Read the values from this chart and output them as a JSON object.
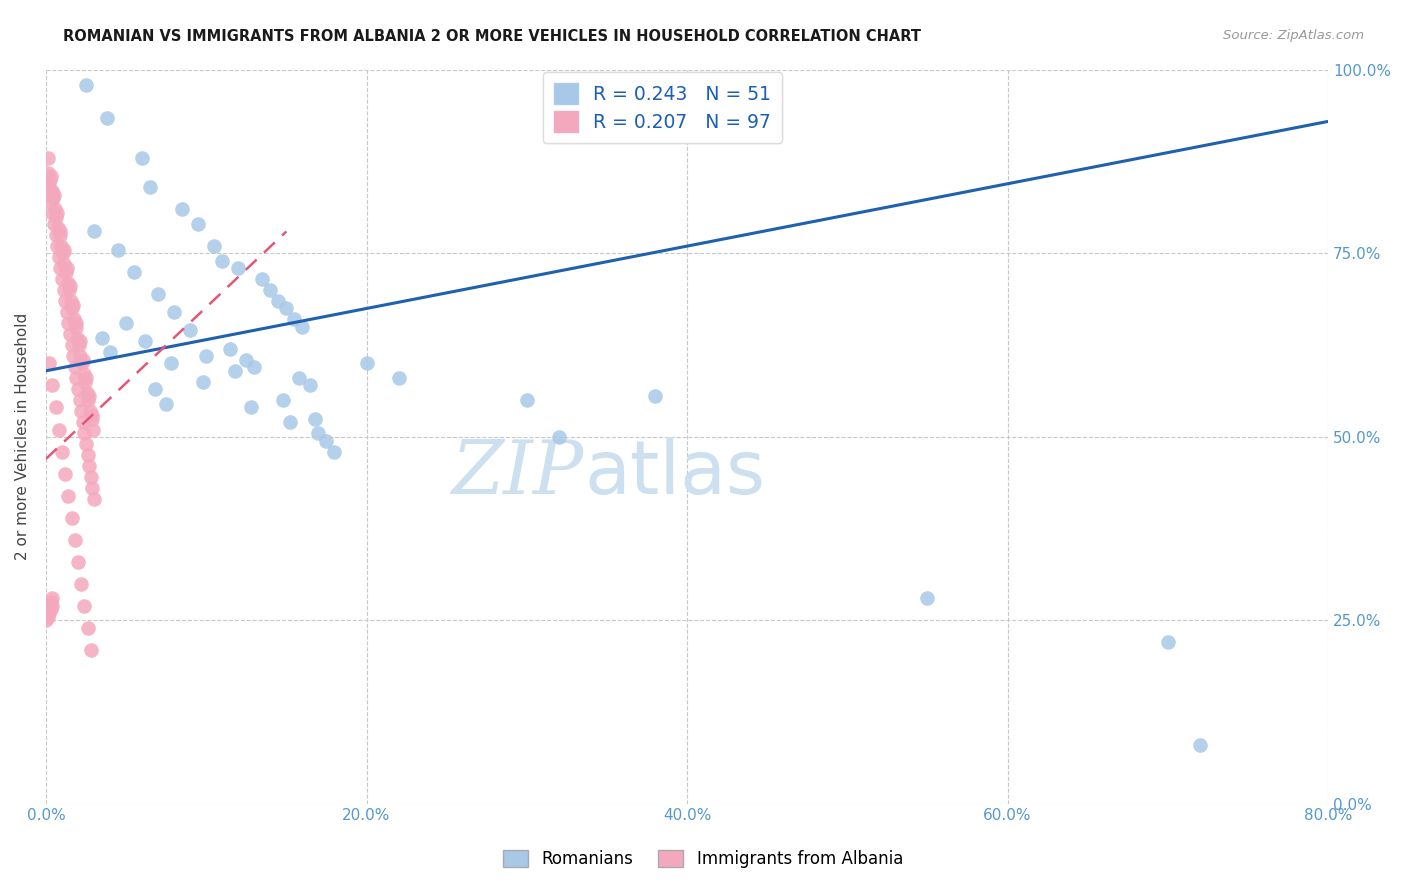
{
  "title": "ROMANIAN VS IMMIGRANTS FROM ALBANIA 2 OR MORE VEHICLES IN HOUSEHOLD CORRELATION CHART",
  "source": "Source: ZipAtlas.com",
  "ylabel": "2 or more Vehicles in Household",
  "xlabel_vals": [
    0.0,
    20.0,
    40.0,
    60.0,
    80.0
  ],
  "ylabel_vals": [
    0.0,
    25.0,
    50.0,
    75.0,
    100.0
  ],
  "xlim": [
    0.0,
    80.0
  ],
  "ylim": [
    0.0,
    100.0
  ],
  "legend_romanian": "Romanians",
  "legend_albania": "Immigrants from Albania",
  "R_romanian": 0.243,
  "N_romanian": 51,
  "R_albania": 0.207,
  "N_albania": 97,
  "romanian_color": "#a8c8e8",
  "albania_color": "#f4a8be",
  "trendline_romanian_color": "#2060b0",
  "trendline_albania_color": "#e05878",
  "watermark_zip_color": "#c8dff0",
  "watermark_atlas_color": "#c8dff0",
  "rom_x": [
    2.5,
    3.8,
    6.0,
    6.5,
    8.5,
    9.5,
    10.5,
    11.0,
    12.0,
    13.5,
    14.0,
    14.5,
    15.0,
    15.5,
    16.0,
    3.0,
    4.5,
    5.5,
    7.0,
    8.0,
    9.0,
    11.5,
    12.5,
    13.0,
    15.8,
    16.5,
    3.5,
    4.0,
    6.8,
    7.5,
    10.0,
    11.8,
    14.8,
    16.8,
    5.0,
    6.2,
    7.8,
    9.8,
    12.8,
    15.2,
    17.0,
    17.5,
    18.0,
    20.0,
    22.0,
    30.0,
    32.0,
    38.0,
    55.0,
    70.0,
    72.0
  ],
  "rom_y": [
    98.0,
    93.5,
    88.0,
    84.0,
    81.0,
    79.0,
    76.0,
    74.0,
    73.0,
    71.5,
    70.0,
    68.5,
    67.5,
    66.0,
    65.0,
    78.0,
    75.5,
    72.5,
    69.5,
    67.0,
    64.5,
    62.0,
    60.5,
    59.5,
    58.0,
    57.0,
    63.5,
    61.5,
    56.5,
    54.5,
    61.0,
    59.0,
    55.0,
    52.5,
    65.5,
    63.0,
    60.0,
    57.5,
    54.0,
    52.0,
    50.5,
    49.5,
    48.0,
    60.0,
    58.0,
    55.0,
    50.0,
    55.5,
    28.0,
    22.0,
    8.0
  ],
  "alb_x": [
    0.2,
    0.3,
    0.4,
    0.5,
    0.6,
    0.7,
    0.8,
    0.9,
    1.0,
    1.1,
    1.2,
    1.3,
    1.4,
    1.5,
    1.6,
    1.7,
    1.8,
    1.9,
    2.0,
    2.1,
    2.2,
    2.3,
    2.4,
    2.5,
    2.6,
    2.7,
    2.8,
    2.9,
    3.0,
    0.15,
    0.35,
    0.55,
    0.75,
    0.95,
    1.15,
    1.35,
    1.55,
    1.75,
    1.95,
    2.15,
    2.35,
    2.55,
    2.75,
    2.95,
    0.25,
    0.45,
    0.65,
    0.85,
    1.05,
    1.25,
    1.45,
    1.65,
    1.85,
    2.05,
    2.25,
    2.45,
    2.65,
    2.85,
    0.1,
    0.3,
    0.5,
    0.7,
    0.9,
    1.1,
    1.3,
    1.5,
    1.7,
    1.9,
    2.1,
    2.3,
    2.5,
    2.7,
    2.9,
    0.2,
    0.4,
    0.6,
    0.8,
    1.0,
    1.2,
    1.4,
    1.6,
    1.8,
    2.0,
    2.2,
    2.4,
    2.6,
    2.8,
    0.0,
    0.0,
    0.1,
    0.1,
    0.2,
    0.2,
    0.3,
    0.3,
    0.4,
    0.4
  ],
  "alb_y": [
    84.0,
    82.0,
    80.5,
    79.0,
    77.5,
    76.0,
    74.5,
    73.0,
    71.5,
    70.0,
    68.5,
    67.0,
    65.5,
    64.0,
    62.5,
    61.0,
    59.5,
    58.0,
    56.5,
    55.0,
    53.5,
    52.0,
    50.5,
    49.0,
    47.5,
    46.0,
    44.5,
    43.0,
    41.5,
    86.0,
    83.5,
    81.0,
    78.5,
    76.0,
    73.5,
    71.0,
    68.5,
    66.0,
    63.5,
    61.0,
    58.5,
    56.0,
    53.5,
    51.0,
    85.0,
    82.5,
    80.0,
    77.5,
    75.0,
    72.5,
    70.0,
    67.5,
    65.0,
    62.5,
    60.0,
    57.5,
    55.0,
    52.5,
    88.0,
    85.5,
    83.0,
    80.5,
    78.0,
    75.5,
    73.0,
    70.5,
    68.0,
    65.5,
    63.0,
    60.5,
    58.0,
    55.5,
    53.0,
    60.0,
    57.0,
    54.0,
    51.0,
    48.0,
    45.0,
    42.0,
    39.0,
    36.0,
    33.0,
    30.0,
    27.0,
    24.0,
    21.0,
    26.0,
    25.0,
    26.5,
    25.5,
    27.0,
    26.0,
    27.5,
    26.5,
    28.0,
    27.0
  ]
}
